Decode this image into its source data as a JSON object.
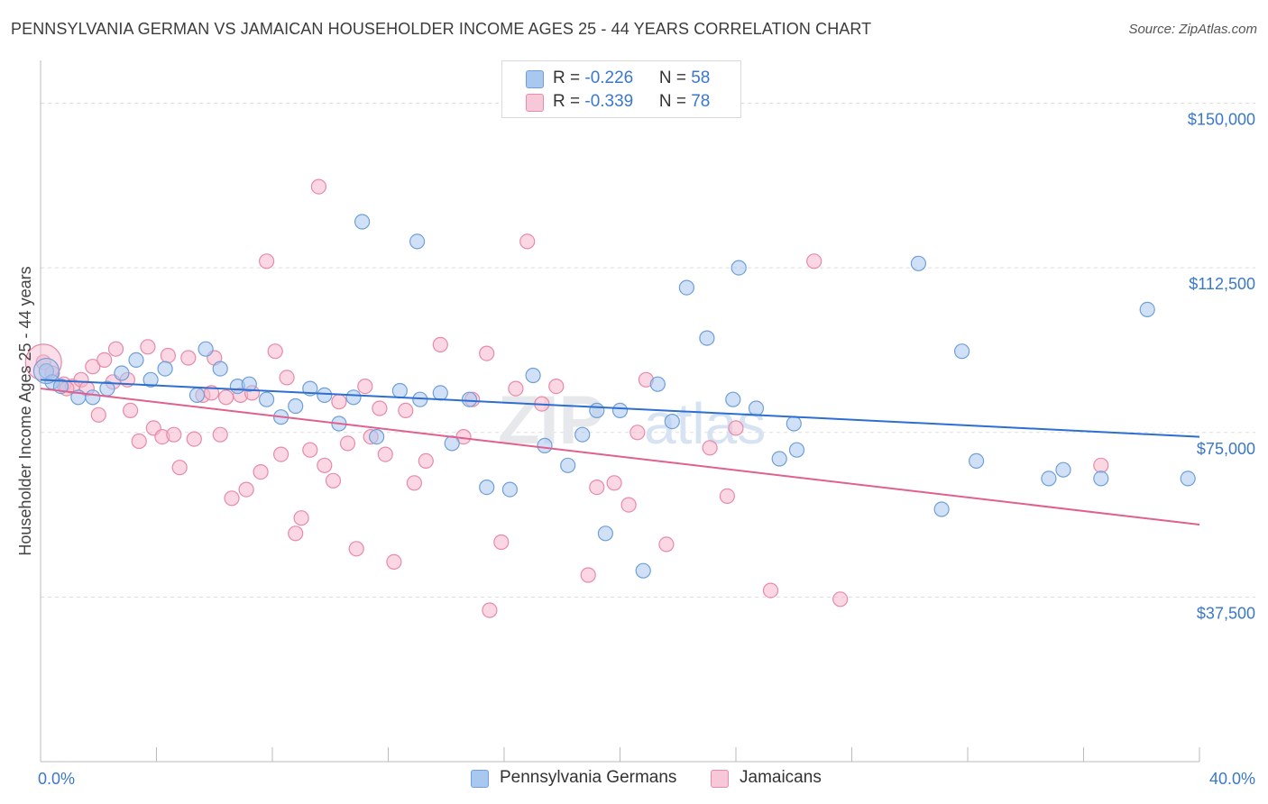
{
  "title": "PENNSYLVANIA GERMAN VS JAMAICAN HOUSEHOLDER INCOME AGES 25 - 44 YEARS CORRELATION CHART",
  "source": "Source: ZipAtlas.com",
  "watermark": {
    "zip": "ZIP",
    "atlas": "atlas"
  },
  "legend": {
    "rows": [
      {
        "r_label": "R = ",
        "r_value": "-0.226",
        "n_label": "N = ",
        "n_value": "58"
      },
      {
        "r_label": "R = ",
        "r_value": "-0.339",
        "n_label": "N = ",
        "n_value": "78"
      }
    ]
  },
  "bottom_legend": {
    "series1": "Pennsylvania Germans",
    "series2": "Jamaicans"
  },
  "colors": {
    "blue_fill": "#a9c8f0",
    "blue_stroke": "#6f9fd8",
    "blue_line": "#2d6fd1",
    "pink_fill": "#f6b6cb",
    "pink_stroke": "#e88aa8",
    "pink_line": "#e0608e",
    "tick_color": "#3a78c9",
    "grid": "#dddddd"
  },
  "chart_data": {
    "type": "scatter",
    "title": "PENNSYLVANIA GERMAN VS JAMAICAN HOUSEHOLDER INCOME AGES 25 - 44 YEARS CORRELATION CHART",
    "xlabel": "",
    "ylabel": "Householder Income Ages 25 - 44 years",
    "xlim": [
      0,
      40
    ],
    "ylim": [
      0,
      157500
    ],
    "x_tick_labels": [
      "0.0%",
      "40.0%"
    ],
    "y_ticks": [
      37500,
      75000,
      112500,
      150000
    ],
    "y_tick_labels": [
      "$37,500",
      "$75,000",
      "$112,500",
      "$150,000"
    ],
    "grid": true,
    "legend_position": "top-center",
    "series": [
      {
        "name": "Pennsylvania Germans",
        "r": -0.226,
        "n": 58,
        "trend": {
          "x0": 0,
          "y0": 87000,
          "x1": 40,
          "y1": 74000
        },
        "points": [
          [
            0.2,
            89000
          ],
          [
            0.4,
            86500
          ],
          [
            0.7,
            85500
          ],
          [
            1.3,
            83000
          ],
          [
            1.8,
            83000
          ],
          [
            2.3,
            85000
          ],
          [
            2.8,
            88500
          ],
          [
            3.3,
            91500
          ],
          [
            3.8,
            87000
          ],
          [
            4.3,
            89500
          ],
          [
            5.4,
            83500
          ],
          [
            5.7,
            94000
          ],
          [
            6.2,
            89500
          ],
          [
            6.8,
            85500
          ],
          [
            7.2,
            86000
          ],
          [
            7.8,
            82500
          ],
          [
            8.3,
            78500
          ],
          [
            8.8,
            81000
          ],
          [
            9.3,
            85000
          ],
          [
            9.8,
            83500
          ],
          [
            10.3,
            77000
          ],
          [
            10.8,
            83000
          ],
          [
            11.1,
            123000
          ],
          [
            11.6,
            74000
          ],
          [
            12.4,
            84500
          ],
          [
            13.0,
            118500
          ],
          [
            13.1,
            82500
          ],
          [
            13.8,
            84000
          ],
          [
            14.2,
            72500
          ],
          [
            14.8,
            82500
          ],
          [
            15.4,
            62500
          ],
          [
            16.2,
            62000
          ],
          [
            17.0,
            88000
          ],
          [
            17.4,
            72000
          ],
          [
            18.2,
            67500
          ],
          [
            18.7,
            74500
          ],
          [
            19.2,
            80000
          ],
          [
            19.5,
            52000
          ],
          [
            20.0,
            80000
          ],
          [
            20.8,
            43500
          ],
          [
            21.3,
            86000
          ],
          [
            21.8,
            77500
          ],
          [
            22.3,
            108000
          ],
          [
            23.0,
            96500
          ],
          [
            23.9,
            82500
          ],
          [
            24.1,
            112500
          ],
          [
            24.7,
            80500
          ],
          [
            25.5,
            69000
          ],
          [
            26.0,
            77000
          ],
          [
            26.1,
            71000
          ],
          [
            30.3,
            113500
          ],
          [
            31.1,
            57500
          ],
          [
            31.8,
            93500
          ],
          [
            32.3,
            68500
          ],
          [
            34.8,
            64500
          ],
          [
            35.3,
            66500
          ],
          [
            36.6,
            64500
          ],
          [
            38.2,
            103000
          ],
          [
            39.6,
            64500
          ]
        ]
      },
      {
        "name": "Jamaicans",
        "r": -0.339,
        "n": 78,
        "trend": {
          "x0": 0,
          "y0": 85000,
          "x1": 40,
          "y1": 54000
        },
        "points": [
          [
            0.1,
            91000
          ],
          [
            0.4,
            88500
          ],
          [
            0.8,
            86000
          ],
          [
            1.1,
            85500
          ],
          [
            1.4,
            87000
          ],
          [
            1.6,
            85000
          ],
          [
            1.8,
            90000
          ],
          [
            2.0,
            79000
          ],
          [
            2.2,
            91500
          ],
          [
            2.5,
            86500
          ],
          [
            2.6,
            94000
          ],
          [
            3.0,
            87000
          ],
          [
            3.1,
            80000
          ],
          [
            3.4,
            73000
          ],
          [
            3.7,
            94500
          ],
          [
            3.9,
            76000
          ],
          [
            4.2,
            74000
          ],
          [
            4.4,
            92500
          ],
          [
            4.6,
            74500
          ],
          [
            4.8,
            67000
          ],
          [
            5.1,
            92000
          ],
          [
            5.3,
            73500
          ],
          [
            5.6,
            83500
          ],
          [
            5.9,
            84000
          ],
          [
            6.0,
            92000
          ],
          [
            6.2,
            74500
          ],
          [
            6.4,
            83000
          ],
          [
            6.6,
            60000
          ],
          [
            6.9,
            83500
          ],
          [
            7.1,
            62000
          ],
          [
            7.3,
            84000
          ],
          [
            7.6,
            66000
          ],
          [
            7.8,
            114000
          ],
          [
            8.1,
            93500
          ],
          [
            8.3,
            70000
          ],
          [
            8.5,
            87500
          ],
          [
            8.8,
            52000
          ],
          [
            9.0,
            55500
          ],
          [
            9.3,
            71000
          ],
          [
            9.6,
            131000
          ],
          [
            9.8,
            67500
          ],
          [
            10.1,
            64000
          ],
          [
            10.3,
            82000
          ],
          [
            10.6,
            72500
          ],
          [
            10.9,
            48500
          ],
          [
            11.2,
            85500
          ],
          [
            11.4,
            74000
          ],
          [
            11.7,
            80500
          ],
          [
            11.9,
            70000
          ],
          [
            12.2,
            45500
          ],
          [
            12.6,
            80000
          ],
          [
            12.9,
            63500
          ],
          [
            13.3,
            68500
          ],
          [
            13.8,
            95000
          ],
          [
            14.6,
            74000
          ],
          [
            14.9,
            82500
          ],
          [
            15.4,
            93000
          ],
          [
            15.9,
            50000
          ],
          [
            16.4,
            85000
          ],
          [
            16.8,
            118500
          ],
          [
            17.3,
            81500
          ],
          [
            17.8,
            85500
          ],
          [
            18.9,
            42500
          ],
          [
            19.2,
            62500
          ],
          [
            19.8,
            63500
          ],
          [
            20.3,
            58500
          ],
          [
            20.6,
            75000
          ],
          [
            20.9,
            87000
          ],
          [
            21.6,
            49500
          ],
          [
            23.1,
            71500
          ],
          [
            23.7,
            60500
          ],
          [
            24.0,
            76000
          ],
          [
            25.2,
            39000
          ],
          [
            26.7,
            114000
          ],
          [
            27.6,
            37000
          ],
          [
            15.5,
            34500
          ],
          [
            36.6,
            67500
          ],
          [
            0.9,
            85000
          ]
        ]
      }
    ]
  }
}
